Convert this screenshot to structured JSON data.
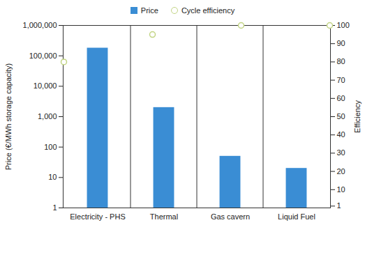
{
  "chart_data": {
    "type": "bar",
    "categories": [
      "Electricity - PHS",
      "Thermal",
      "Gas cavern",
      "Liquid Fuel"
    ],
    "series": [
      {
        "name": "Price",
        "type": "bar",
        "color": "#3a8dd4",
        "values": [
          180000,
          2000,
          50,
          20
        ]
      },
      {
        "name": "Cycle efficiency",
        "type": "scatter",
        "marker": "circle",
        "color": "#c2d483",
        "axis": "y2",
        "values": [
          80,
          95,
          100,
          100
        ]
      }
    ],
    "ylabel": "Price (€/MWh storage capacity)",
    "y2label": "Efficiency",
    "log": "y",
    "ylim": [
      1,
      1000000
    ],
    "yticks": [
      1,
      10,
      100,
      {
        "value": 1000,
        "label": "1,000"
      },
      {
        "value": 10000,
        "label": "10,000"
      },
      {
        "value": 100000,
        "label": "100,000"
      },
      {
        "value": 1000000,
        "label": "1,000,000"
      }
    ],
    "y2lim": [
      0,
      100
    ],
    "y2ticks": [
      1,
      10,
      20,
      30,
      40,
      50,
      60,
      70,
      80,
      90,
      100
    ],
    "legend": "top",
    "grid": false
  }
}
